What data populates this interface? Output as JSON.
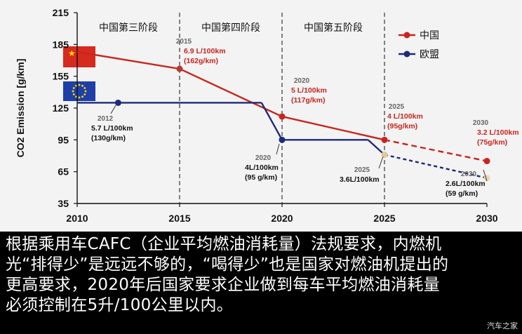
{
  "chart_data": {
    "type": "line",
    "ylabel": "CO2  Emission [g/km]",
    "xlabel": "",
    "xlim": [
      2010,
      2030
    ],
    "ylim": [
      35,
      215
    ],
    "x_ticks": [
      2010,
      2015,
      2020,
      2025,
      2030
    ],
    "y_ticks": [
      35,
      65,
      95,
      125,
      155,
      185,
      215
    ],
    "phases": [
      "中国第三阶段",
      "中国第四阶段",
      "中国第五阶段"
    ],
    "phase_dividers": [
      2015,
      2020,
      2025
    ],
    "grid": false,
    "legend_position": "top-right",
    "series": [
      {
        "name": "中国",
        "color": "#c8251f",
        "points": [
          {
            "x": 2010,
            "y": 178
          },
          {
            "x": 2015,
            "y": 162
          },
          {
            "x": 2020,
            "y": 117
          },
          {
            "x": 2025,
            "y": 95
          },
          {
            "x": 2030,
            "y": 75,
            "projected": true
          }
        ]
      },
      {
        "name": "欧盟",
        "color": "#1f2a78",
        "points": [
          {
            "x": 2010,
            "y": 130
          },
          {
            "x": 2012,
            "y": 130
          },
          {
            "x": 2019,
            "y": 130
          },
          {
            "x": 2020,
            "y": 95
          },
          {
            "x": 2024.2,
            "y": 95
          },
          {
            "x": 2025,
            "y": 81
          },
          {
            "x": 2030,
            "y": 59,
            "projected": true
          }
        ]
      }
    ],
    "annotations": [
      {
        "year": "2015",
        "line1": "6.9 L/100km",
        "line2": "(162g/km)",
        "series": "中国"
      },
      {
        "year": "2020",
        "line1": "5 L/100km",
        "line2": "(117g/km)",
        "series": "中国"
      },
      {
        "year": "2025",
        "line1": "4 L/100km",
        "line2": "(95g/km)",
        "series": "中国"
      },
      {
        "year": "2030",
        "line1": "3.2 L/100km",
        "line2": "(75g/km)",
        "series": "中国"
      },
      {
        "year": "2012",
        "line1": "5.7 L/100km",
        "line2": "(130g/km)",
        "series": "欧盟"
      },
      {
        "year": "2020",
        "line1": "4L/100km",
        "line2": "(95 g/km)",
        "series": "欧盟"
      },
      {
        "year": "2025",
        "line1": "3.6L/100km",
        "line2": "",
        "series": "欧盟"
      },
      {
        "year": "2030",
        "line1": "2.6L/100km",
        "line2": "(59 g/km)",
        "series": "欧盟"
      }
    ]
  },
  "caption": {
    "lines": [
      "根据乘用车CAFC（企业平均燃油消耗量）法规要求，内燃机",
      "光“排得少”是远远不够的，“喝得少”也是国家对燃油机提出的",
      "更高要求，2020年后国家要求企业做到每车平均燃油消耗量",
      "必须控制在5升/100公里以内。"
    ]
  },
  "watermark": "汽车之家"
}
